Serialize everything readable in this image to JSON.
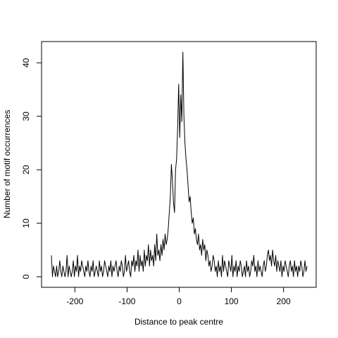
{
  "chart_data": {
    "type": "line",
    "title": "",
    "xlabel": "Distance to peak centre",
    "ylabel": "Number of motif occurrences",
    "xlim": [
      -245,
      245
    ],
    "ylim": [
      0,
      42
    ],
    "x_ticks": [
      -200,
      -100,
      0,
      100,
      200
    ],
    "y_ticks": [
      0,
      10,
      20,
      30,
      40
    ],
    "grid": false,
    "legend": "none",
    "series": [
      {
        "color": "#000000",
        "x": [
          -245,
          -243,
          -241,
          -239,
          -237,
          -235,
          -233,
          -231,
          -229,
          -227,
          -225,
          -223,
          -221,
          -219,
          -217,
          -215,
          -213,
          -211,
          -209,
          -207,
          -205,
          -203,
          -201,
          -199,
          -197,
          -195,
          -193,
          -191,
          -189,
          -187,
          -185,
          -183,
          -181,
          -179,
          -177,
          -175,
          -173,
          -171,
          -169,
          -167,
          -165,
          -163,
          -161,
          -159,
          -157,
          -155,
          -153,
          -151,
          -149,
          -147,
          -145,
          -143,
          -141,
          -139,
          -137,
          -135,
          -133,
          -131,
          -129,
          -127,
          -125,
          -123,
          -121,
          -119,
          -117,
          -115,
          -113,
          -111,
          -109,
          -107,
          -105,
          -103,
          -101,
          -99,
          -97,
          -95,
          -93,
          -91,
          -89,
          -87,
          -85,
          -83,
          -81,
          -79,
          -77,
          -75,
          -73,
          -71,
          -69,
          -67,
          -65,
          -63,
          -61,
          -59,
          -57,
          -55,
          -53,
          -51,
          -49,
          -47,
          -45,
          -43,
          -41,
          -39,
          -37,
          -35,
          -33,
          -31,
          -29,
          -27,
          -25,
          -23,
          -21,
          -19,
          -17,
          -15,
          -13,
          -11,
          -9,
          -7,
          -5,
          -3,
          -1,
          1,
          3,
          5,
          7,
          9,
          11,
          13,
          15,
          17,
          19,
          21,
          23,
          25,
          27,
          29,
          31,
          33,
          35,
          37,
          39,
          41,
          43,
          45,
          47,
          49,
          51,
          53,
          55,
          57,
          59,
          61,
          63,
          65,
          67,
          69,
          71,
          73,
          75,
          77,
          79,
          81,
          83,
          85,
          87,
          89,
          91,
          93,
          95,
          97,
          99,
          101,
          103,
          105,
          107,
          109,
          111,
          113,
          115,
          117,
          119,
          121,
          123,
          125,
          127,
          129,
          131,
          133,
          135,
          137,
          139,
          141,
          143,
          145,
          147,
          149,
          151,
          153,
          155,
          157,
          159,
          161,
          163,
          165,
          167,
          169,
          171,
          173,
          175,
          177,
          179,
          181,
          183,
          185,
          187,
          189,
          191,
          193,
          195,
          197,
          199,
          201,
          203,
          205,
          207,
          209,
          211,
          213,
          215,
          217,
          219,
          221,
          223,
          225,
          227,
          229,
          231,
          233,
          235,
          237,
          239,
          241,
          243,
          245
        ],
        "y": [
          4,
          0,
          2,
          1,
          0,
          2,
          0,
          1,
          3,
          1,
          0,
          2,
          1,
          0,
          1,
          4,
          0,
          2,
          1,
          0,
          1,
          3,
          0,
          2,
          1,
          4,
          0,
          2,
          1,
          3,
          2,
          1,
          0,
          2,
          1,
          3,
          1,
          0,
          2,
          1,
          3,
          0,
          1,
          2,
          1,
          0,
          3,
          1,
          2,
          0,
          1,
          3,
          2,
          1,
          0,
          2,
          1,
          3,
          0,
          2,
          1,
          2,
          3,
          1,
          0,
          2,
          1,
          3,
          2,
          0,
          1,
          4,
          1,
          2,
          3,
          1,
          0,
          3,
          2,
          4,
          1,
          3,
          2,
          5,
          1,
          4,
          2,
          3,
          1,
          5,
          2,
          4,
          3,
          6,
          2,
          5,
          3,
          4,
          2,
          6,
          3,
          8,
          4,
          5,
          3,
          6,
          4,
          7,
          5,
          8,
          6,
          7,
          9,
          12,
          15,
          21,
          18,
          14,
          12,
          20,
          22,
          28,
          36,
          26,
          34,
          29,
          42,
          30,
          25,
          22,
          20,
          17,
          14,
          15,
          12,
          10,
          11,
          8,
          9,
          7,
          6,
          8,
          5,
          6,
          4,
          7,
          5,
          6,
          3,
          5,
          4,
          2,
          3,
          1,
          2,
          4,
          3,
          1,
          2,
          0,
          3,
          1,
          2,
          0,
          4,
          1,
          3,
          2,
          1,
          0,
          3,
          2,
          1,
          4,
          0,
          2,
          1,
          3,
          0,
          2,
          1,
          3,
          2,
          0,
          1,
          2,
          0,
          3,
          1,
          2,
          0,
          1,
          3,
          2,
          4,
          1,
          2,
          0,
          3,
          1,
          2,
          1,
          0,
          2,
          3,
          1,
          2,
          4,
          5,
          3,
          4,
          2,
          5,
          3,
          2,
          4,
          1,
          3,
          2,
          1,
          3,
          0,
          2,
          1,
          3,
          2,
          1,
          0,
          2,
          3,
          1,
          2,
          0,
          3,
          1,
          2,
          0,
          2,
          1,
          3,
          2,
          0,
          1,
          3,
          1,
          2
        ]
      }
    ]
  }
}
